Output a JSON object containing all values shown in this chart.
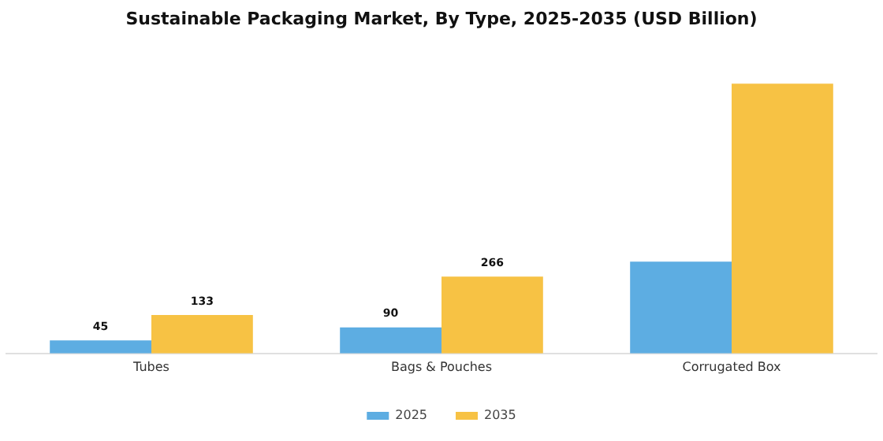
{
  "chart_data": {
    "type": "bar",
    "title": "Sustainable Packaging Market, By Type, 2025-2035 (USD Billion)",
    "categories": [
      "Tubes",
      "Bags & Pouches",
      "Corrugated Box"
    ],
    "tick_labels": "x",
    "legend": "bottom",
    "grid": false,
    "series": [
      {
        "name": "2025",
        "color": "#5dade2",
        "values": [
          45,
          90,
          318
        ],
        "value_labels": [
          "45",
          "90",
          null
        ]
      },
      {
        "name": "2035",
        "color": "#f7c244",
        "values": [
          133,
          266,
          935
        ],
        "value_labels": [
          "133",
          "266",
          null
        ]
      }
    ]
  }
}
